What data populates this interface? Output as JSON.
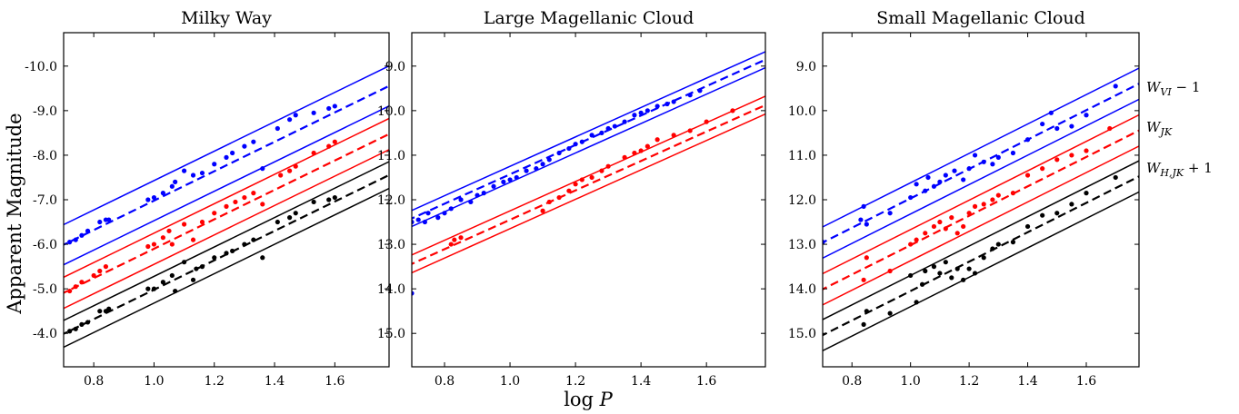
{
  "figure": {
    "ylabel": "Apparent Magnitude",
    "xlabel": "log P"
  },
  "series_labels": [
    {
      "base": "W",
      "sub": "VI",
      "suffix": " − 1"
    },
    {
      "base": "W",
      "sub": "JK",
      "suffix": ""
    },
    {
      "base": "W",
      "sub": "H,JK",
      "suffix": " + 1"
    }
  ],
  "colors": {
    "blue": "#0000ff",
    "red": "#ff0000",
    "black": "#000000"
  },
  "chart_data": [
    {
      "type": "scatter",
      "title": "Milky Way",
      "xlim": [
        0.7,
        1.78
      ],
      "ylim": [
        -3.25,
        -10.75
      ],
      "y_inverted": true,
      "xticks": [
        0.8,
        1.0,
        1.2,
        1.4,
        1.6
      ],
      "xtick_labels": [
        "0.8",
        "1.0",
        "1.2",
        "1.4",
        "1.6"
      ],
      "yticks": [
        -4,
        -5,
        -6,
        -7,
        -8,
        -9,
        -10
      ],
      "ytick_labels": [
        "-4.0",
        "-5.0",
        "-6.0",
        "-7.0",
        "-8.0",
        "-9.0",
        "-10.0"
      ],
      "series": [
        {
          "color": "blue",
          "slope": -3.3,
          "fit_intercept": -3.68,
          "band": 0.45,
          "points": [
            [
              0.72,
              -6.05
            ],
            [
              0.74,
              -6.1
            ],
            [
              0.76,
              -6.2
            ],
            [
              0.78,
              -6.3
            ],
            [
              0.82,
              -6.5
            ],
            [
              0.84,
              -6.55
            ],
            [
              0.85,
              -6.55
            ],
            [
              0.98,
              -7.0
            ],
            [
              1.0,
              -7.05
            ],
            [
              1.03,
              -7.15
            ],
            [
              1.06,
              -7.3
            ],
            [
              1.07,
              -7.4
            ],
            [
              1.1,
              -7.65
            ],
            [
              1.13,
              -7.55
            ],
            [
              1.16,
              -7.6
            ],
            [
              1.2,
              -7.8
            ],
            [
              1.24,
              -7.95
            ],
            [
              1.26,
              -8.05
            ],
            [
              1.3,
              -8.2
            ],
            [
              1.33,
              -8.3
            ],
            [
              1.36,
              -7.7
            ],
            [
              1.41,
              -8.6
            ],
            [
              1.45,
              -8.8
            ],
            [
              1.47,
              -8.9
            ],
            [
              1.53,
              -8.95
            ],
            [
              1.58,
              -9.05
            ],
            [
              1.6,
              -9.1
            ]
          ]
        },
        {
          "color": "red",
          "slope": -3.3,
          "fit_intercept": -2.6,
          "band": 0.35,
          "points": [
            [
              0.72,
              -4.95
            ],
            [
              0.74,
              -5.05
            ],
            [
              0.76,
              -5.15
            ],
            [
              0.8,
              -5.3
            ],
            [
              0.82,
              -5.4
            ],
            [
              0.84,
              -5.5
            ],
            [
              0.98,
              -5.95
            ],
            [
              1.0,
              -6.0
            ],
            [
              1.03,
              -6.15
            ],
            [
              1.05,
              -6.3
            ],
            [
              1.06,
              -6.0
            ],
            [
              1.1,
              -6.45
            ],
            [
              1.13,
              -6.1
            ],
            [
              1.16,
              -6.5
            ],
            [
              1.2,
              -6.7
            ],
            [
              1.24,
              -6.85
            ],
            [
              1.27,
              -6.95
            ],
            [
              1.3,
              -7.05
            ],
            [
              1.33,
              -7.15
            ],
            [
              1.36,
              -6.9
            ],
            [
              1.42,
              -7.55
            ],
            [
              1.45,
              -7.65
            ],
            [
              1.47,
              -7.75
            ],
            [
              1.53,
              -8.05
            ],
            [
              1.58,
              -8.2
            ],
            [
              1.6,
              -8.3
            ]
          ]
        },
        {
          "color": "black",
          "slope": -3.3,
          "fit_intercept": -1.68,
          "band": 0.3,
          "points": [
            [
              0.72,
              -4.05
            ],
            [
              0.74,
              -4.1
            ],
            [
              0.76,
              -4.2
            ],
            [
              0.78,
              -4.25
            ],
            [
              0.82,
              -4.5
            ],
            [
              0.84,
              -4.5
            ],
            [
              0.85,
              -4.55
            ],
            [
              0.98,
              -5.0
            ],
            [
              1.0,
              -5.0
            ],
            [
              1.03,
              -5.15
            ],
            [
              1.06,
              -5.3
            ],
            [
              1.07,
              -4.95
            ],
            [
              1.1,
              -5.6
            ],
            [
              1.13,
              -5.2
            ],
            [
              1.14,
              -5.45
            ],
            [
              1.16,
              -5.5
            ],
            [
              1.2,
              -5.7
            ],
            [
              1.24,
              -5.8
            ],
            [
              1.26,
              -5.85
            ],
            [
              1.3,
              -6.0
            ],
            [
              1.33,
              -6.1
            ],
            [
              1.36,
              -5.7
            ],
            [
              1.41,
              -6.5
            ],
            [
              1.45,
              -6.6
            ],
            [
              1.47,
              -6.7
            ],
            [
              1.53,
              -6.95
            ],
            [
              1.58,
              -7.0
            ],
            [
              1.6,
              -7.05
            ]
          ]
        }
      ]
    },
    {
      "type": "scatter",
      "title": "Large Magellanic Cloud",
      "xlim": [
        0.7,
        1.78
      ],
      "ylim": [
        15.75,
        8.25
      ],
      "y_inverted": true,
      "xticks": [
        0.8,
        1.0,
        1.2,
        1.4,
        1.6
      ],
      "xtick_labels": [
        "0.8",
        "1.0",
        "1.2",
        "1.4",
        "1.6"
      ],
      "yticks": [
        9,
        10,
        11,
        12,
        13,
        14,
        15
      ],
      "ytick_labels": [
        "9.0",
        "10.0",
        "11.0",
        "12.0",
        "13.0",
        "14.0",
        "15.0"
      ],
      "series": [
        {
          "color": "blue",
          "slope": -3.3,
          "fit_intercept": 14.73,
          "band": 0.18,
          "points": [
            [
              0.7,
              14.1
            ],
            [
              0.7,
              12.5
            ],
            [
              0.72,
              12.45
            ],
            [
              0.74,
              12.5
            ],
            [
              0.75,
              12.3
            ],
            [
              0.78,
              12.4
            ],
            [
              0.8,
              12.3
            ],
            [
              0.82,
              12.2
            ],
            [
              0.85,
              12.0
            ],
            [
              0.88,
              12.05
            ],
            [
              0.9,
              11.9
            ],
            [
              0.92,
              11.85
            ],
            [
              0.95,
              11.7
            ],
            [
              0.98,
              11.6
            ],
            [
              1.0,
              11.55
            ],
            [
              1.02,
              11.5
            ],
            [
              1.05,
              11.35
            ],
            [
              1.08,
              11.3
            ],
            [
              1.1,
              11.2
            ],
            [
              1.12,
              11.1
            ],
            [
              1.15,
              10.95
            ],
            [
              1.18,
              10.85
            ],
            [
              1.2,
              10.75
            ],
            [
              1.22,
              10.7
            ],
            [
              1.25,
              10.55
            ],
            [
              1.28,
              10.5
            ],
            [
              1.3,
              10.4
            ],
            [
              1.32,
              10.35
            ],
            [
              1.35,
              10.25
            ],
            [
              1.38,
              10.1
            ],
            [
              1.4,
              10.05
            ],
            [
              1.42,
              10.0
            ],
            [
              1.45,
              9.9
            ],
            [
              1.48,
              9.85
            ],
            [
              1.5,
              9.8
            ],
            [
              1.55,
              9.65
            ],
            [
              1.58,
              9.55
            ]
          ]
        },
        {
          "color": "red",
          "slope": -3.3,
          "fit_intercept": 15.75,
          "band": 0.2,
          "points": [
            [
              0.82,
              13.0
            ],
            [
              0.83,
              12.9
            ],
            [
              0.85,
              12.85
            ],
            [
              1.1,
              12.25
            ],
            [
              1.12,
              12.05
            ],
            [
              1.15,
              11.95
            ],
            [
              1.18,
              11.8
            ],
            [
              1.2,
              11.65
            ],
            [
              1.22,
              11.55
            ],
            [
              1.25,
              11.5
            ],
            [
              1.28,
              11.35
            ],
            [
              1.3,
              11.25
            ],
            [
              1.35,
              11.05
            ],
            [
              1.38,
              10.95
            ],
            [
              1.4,
              10.9
            ],
            [
              1.42,
              10.8
            ],
            [
              1.45,
              10.65
            ],
            [
              1.5,
              10.55
            ],
            [
              1.55,
              10.45
            ],
            [
              1.6,
              10.25
            ],
            [
              1.68,
              10.0
            ]
          ]
        }
      ]
    },
    {
      "type": "scatter",
      "title": "Small Magellanic Cloud",
      "xlim": [
        0.7,
        1.78
      ],
      "ylim": [
        15.75,
        8.25
      ],
      "y_inverted": true,
      "xticks": [
        0.8,
        1.0,
        1.2,
        1.4,
        1.6
      ],
      "xtick_labels": [
        "0.8",
        "1.0",
        "1.2",
        "1.4",
        "1.6"
      ],
      "yticks": [
        9,
        10,
        11,
        12,
        13,
        14,
        15
      ],
      "ytick_labels": [
        "9.0",
        "10.0",
        "11.0",
        "12.0",
        "13.0",
        "14.0",
        "15.0"
      ],
      "series": [
        {
          "color": "blue",
          "slope": -3.3,
          "fit_intercept": 15.27,
          "band": 0.35,
          "points": [
            [
              0.7,
              12.95
            ],
            [
              0.83,
              12.45
            ],
            [
              0.84,
              12.15
            ],
            [
              0.85,
              12.55
            ],
            [
              0.93,
              12.3
            ],
            [
              1.0,
              11.95
            ],
            [
              1.02,
              11.65
            ],
            [
              1.05,
              11.8
            ],
            [
              1.06,
              11.5
            ],
            [
              1.08,
              11.7
            ],
            [
              1.1,
              11.6
            ],
            [
              1.12,
              11.45
            ],
            [
              1.15,
              11.35
            ],
            [
              1.18,
              11.55
            ],
            [
              1.2,
              11.3
            ],
            [
              1.22,
              11.0
            ],
            [
              1.25,
              11.15
            ],
            [
              1.28,
              11.2
            ],
            [
              1.3,
              11.05
            ],
            [
              1.35,
              10.95
            ],
            [
              1.4,
              10.65
            ],
            [
              1.45,
              10.3
            ],
            [
              1.48,
              10.05
            ],
            [
              1.5,
              10.4
            ],
            [
              1.55,
              10.35
            ],
            [
              1.6,
              10.1
            ],
            [
              1.7,
              9.45
            ]
          ]
        },
        {
          "color": "red",
          "slope": -3.3,
          "fit_intercept": 16.32,
          "band": 0.35,
          "points": [
            [
              0.84,
              13.8
            ],
            [
              0.85,
              13.3
            ],
            [
              0.93,
              13.6
            ],
            [
              1.0,
              13.0
            ],
            [
              1.02,
              12.9
            ],
            [
              1.05,
              12.75
            ],
            [
              1.08,
              12.6
            ],
            [
              1.1,
              12.5
            ],
            [
              1.12,
              12.65
            ],
            [
              1.14,
              12.4
            ],
            [
              1.16,
              12.75
            ],
            [
              1.18,
              12.6
            ],
            [
              1.2,
              12.3
            ],
            [
              1.22,
              12.15
            ],
            [
              1.25,
              12.1
            ],
            [
              1.28,
              12.0
            ],
            [
              1.3,
              11.9
            ],
            [
              1.35,
              11.85
            ],
            [
              1.4,
              11.45
            ],
            [
              1.45,
              11.3
            ],
            [
              1.5,
              11.1
            ],
            [
              1.55,
              11.0
            ],
            [
              1.6,
              10.9
            ],
            [
              1.68,
              10.4
            ]
          ]
        },
        {
          "color": "black",
          "slope": -3.3,
          "fit_intercept": 17.35,
          "band": 0.35,
          "points": [
            [
              0.84,
              14.8
            ],
            [
              0.85,
              14.5
            ],
            [
              0.93,
              14.55
            ],
            [
              1.0,
              13.7
            ],
            [
              1.02,
              14.3
            ],
            [
              1.04,
              13.9
            ],
            [
              1.05,
              13.6
            ],
            [
              1.08,
              13.5
            ],
            [
              1.1,
              13.65
            ],
            [
              1.12,
              13.4
            ],
            [
              1.14,
              13.75
            ],
            [
              1.16,
              13.55
            ],
            [
              1.18,
              13.8
            ],
            [
              1.2,
              13.55
            ],
            [
              1.22,
              13.65
            ],
            [
              1.25,
              13.3
            ],
            [
              1.28,
              13.1
            ],
            [
              1.3,
              13.0
            ],
            [
              1.35,
              12.95
            ],
            [
              1.4,
              12.6
            ],
            [
              1.45,
              12.35
            ],
            [
              1.5,
              12.3
            ],
            [
              1.55,
              12.1
            ],
            [
              1.6,
              11.85
            ],
            [
              1.7,
              11.5
            ]
          ]
        }
      ]
    }
  ]
}
